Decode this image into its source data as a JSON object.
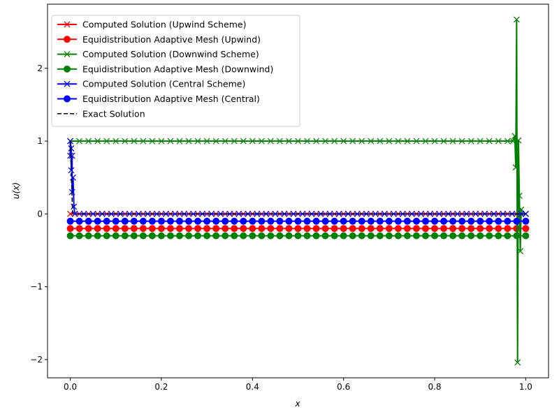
{
  "chart_data": {
    "type": "line",
    "title": "",
    "xlabel": "x",
    "ylabel": "u(x)",
    "xlim": [
      -0.05,
      1.05
    ],
    "ylim": [
      -2.25,
      2.88
    ],
    "xticks": [
      0.0,
      0.2,
      0.4,
      0.6,
      0.8,
      1.0
    ],
    "xtick_labels": [
      "0.0",
      "0.2",
      "0.4",
      "0.6",
      "0.8",
      "1.0"
    ],
    "yticks": [
      -2,
      -1,
      0,
      1,
      2
    ],
    "ytick_labels": [
      "−2",
      "−1",
      "0",
      "1",
      "2"
    ],
    "grid": false,
    "legend_position": "top-left",
    "series": [
      {
        "name": "Computed Solution (Upwind Scheme)",
        "color": "#ff0000",
        "marker": "x",
        "style": "solid",
        "x": [
          0.0,
          0.02,
          0.04,
          0.06,
          0.08,
          0.1,
          0.12,
          0.14,
          0.16,
          0.18,
          0.2,
          0.22,
          0.24,
          0.26,
          0.28,
          0.3,
          0.32,
          0.34,
          0.36,
          0.38,
          0.4,
          0.42,
          0.44,
          0.46,
          0.48,
          0.5,
          0.52,
          0.54,
          0.56,
          0.58,
          0.6,
          0.62,
          0.64,
          0.66,
          0.68,
          0.7,
          0.72,
          0.74,
          0.76,
          0.78,
          0.8,
          0.82,
          0.84,
          0.86,
          0.88,
          0.9,
          0.92,
          0.94,
          0.96,
          0.98,
          1.0
        ],
        "y": [
          0.0,
          0.0,
          0.0,
          0.0,
          0.0,
          0.0,
          0.0,
          0.0,
          0.0,
          0.0,
          0.0,
          0.0,
          0.0,
          0.0,
          0.0,
          0.0,
          0.0,
          0.0,
          0.0,
          0.0,
          0.0,
          0.0,
          0.0,
          0.0,
          0.0,
          0.0,
          0.0,
          0.0,
          0.0,
          0.0,
          0.0,
          0.0,
          0.0,
          0.0,
          0.0,
          0.0,
          0.0,
          0.0,
          0.0,
          0.0,
          0.0,
          0.0,
          0.0,
          0.0,
          0.0,
          0.0,
          0.0,
          0.0,
          0.0,
          0.0,
          0.0
        ]
      },
      {
        "name": "Equidistribution Adaptive Mesh (Upwind)",
        "color": "#ff0000",
        "marker": "o",
        "style": "solid",
        "x": [
          0.0,
          0.02,
          0.04,
          0.06,
          0.08,
          0.1,
          0.12,
          0.14,
          0.16,
          0.18,
          0.2,
          0.22,
          0.24,
          0.26,
          0.28,
          0.3,
          0.32,
          0.34,
          0.36,
          0.38,
          0.4,
          0.42,
          0.44,
          0.46,
          0.48,
          0.5,
          0.52,
          0.54,
          0.56,
          0.58,
          0.6,
          0.62,
          0.64,
          0.66,
          0.68,
          0.7,
          0.72,
          0.74,
          0.76,
          0.78,
          0.8,
          0.82,
          0.84,
          0.86,
          0.88,
          0.9,
          0.92,
          0.94,
          0.96,
          0.98,
          1.0
        ],
        "y": [
          -0.2,
          -0.2,
          -0.2,
          -0.2,
          -0.2,
          -0.2,
          -0.2,
          -0.2,
          -0.2,
          -0.2,
          -0.2,
          -0.2,
          -0.2,
          -0.2,
          -0.2,
          -0.2,
          -0.2,
          -0.2,
          -0.2,
          -0.2,
          -0.2,
          -0.2,
          -0.2,
          -0.2,
          -0.2,
          -0.2,
          -0.2,
          -0.2,
          -0.2,
          -0.2,
          -0.2,
          -0.2,
          -0.2,
          -0.2,
          -0.2,
          -0.2,
          -0.2,
          -0.2,
          -0.2,
          -0.2,
          -0.2,
          -0.2,
          -0.2,
          -0.2,
          -0.2,
          -0.2,
          -0.2,
          -0.2,
          -0.2,
          -0.2,
          -0.2
        ]
      },
      {
        "name": "Computed Solution (Downwind Scheme)",
        "color": "#008000",
        "marker": "x",
        "style": "solid",
        "x": [
          0.0,
          0.02,
          0.04,
          0.06,
          0.08,
          0.1,
          0.12,
          0.14,
          0.16,
          0.18,
          0.2,
          0.22,
          0.24,
          0.26,
          0.28,
          0.3,
          0.32,
          0.34,
          0.36,
          0.38,
          0.4,
          0.42,
          0.44,
          0.46,
          0.48,
          0.5,
          0.52,
          0.54,
          0.56,
          0.58,
          0.6,
          0.62,
          0.64,
          0.66,
          0.68,
          0.7,
          0.72,
          0.74,
          0.76,
          0.78,
          0.8,
          0.82,
          0.84,
          0.86,
          0.88,
          0.9,
          0.92,
          0.94,
          0.96,
          0.972,
          0.976,
          0.978,
          0.98,
          0.982,
          0.984,
          0.986,
          0.988,
          0.99,
          1.0
        ],
        "y": [
          1.0,
          1.0,
          1.0,
          1.0,
          1.0,
          1.0,
          1.0,
          1.0,
          1.0,
          1.0,
          1.0,
          1.0,
          1.0,
          1.0,
          1.0,
          1.0,
          1.0,
          1.0,
          1.0,
          1.0,
          1.0,
          1.0,
          1.0,
          1.0,
          1.0,
          1.0,
          1.0,
          1.0,
          1.0,
          1.0,
          1.0,
          1.0,
          1.0,
          1.0,
          1.0,
          1.0,
          1.0,
          1.0,
          1.0,
          1.0,
          1.0,
          1.0,
          1.0,
          1.0,
          1.0,
          1.0,
          1.0,
          1.0,
          1.0,
          1.0,
          1.07,
          0.64,
          2.67,
          -2.04,
          1.01,
          0.25,
          -0.51,
          0.06,
          0.0
        ]
      },
      {
        "name": "Equidistribution Adaptive Mesh (Downwind)",
        "color": "#008000",
        "marker": "o",
        "style": "solid",
        "x": [
          0.0,
          0.02,
          0.04,
          0.06,
          0.08,
          0.1,
          0.12,
          0.14,
          0.16,
          0.18,
          0.2,
          0.22,
          0.24,
          0.26,
          0.28,
          0.3,
          0.32,
          0.34,
          0.36,
          0.38,
          0.4,
          0.42,
          0.44,
          0.46,
          0.48,
          0.5,
          0.52,
          0.54,
          0.56,
          0.58,
          0.6,
          0.62,
          0.64,
          0.66,
          0.68,
          0.7,
          0.72,
          0.74,
          0.76,
          0.78,
          0.8,
          0.82,
          0.84,
          0.86,
          0.88,
          0.9,
          0.92,
          0.94,
          0.96,
          0.98,
          1.0
        ],
        "y": [
          -0.3,
          -0.3,
          -0.3,
          -0.3,
          -0.3,
          -0.3,
          -0.3,
          -0.3,
          -0.3,
          -0.3,
          -0.3,
          -0.3,
          -0.3,
          -0.3,
          -0.3,
          -0.3,
          -0.3,
          -0.3,
          -0.3,
          -0.3,
          -0.3,
          -0.3,
          -0.3,
          -0.3,
          -0.3,
          -0.3,
          -0.3,
          -0.3,
          -0.3,
          -0.3,
          -0.3,
          -0.3,
          -0.3,
          -0.3,
          -0.3,
          -0.3,
          -0.3,
          -0.3,
          -0.3,
          -0.3,
          -0.3,
          -0.3,
          -0.3,
          -0.3,
          -0.3,
          -0.3,
          -0.3,
          -0.3,
          -0.3,
          -0.3,
          -0.3
        ]
      },
      {
        "name": "Computed Solution (Central Scheme)",
        "color": "#0000ff",
        "marker": "x",
        "style": "solid",
        "x": [
          0.0,
          0.0,
          0.002,
          0.002,
          0.004,
          0.004,
          0.006,
          0.008,
          0.01,
          0.03,
          0.05,
          0.07,
          0.09,
          0.11,
          0.13,
          0.15,
          0.17,
          0.19,
          0.21,
          0.23,
          0.25,
          0.27,
          0.29,
          0.31,
          0.33,
          0.35,
          0.37,
          0.39,
          0.41,
          0.43,
          0.45,
          0.47,
          0.49,
          0.51,
          0.53,
          0.55,
          0.57,
          0.59,
          0.61,
          0.63,
          0.65,
          0.67,
          0.69,
          0.71,
          0.73,
          0.75,
          0.77,
          0.79,
          0.81,
          0.83,
          0.85,
          0.87,
          0.89,
          0.91,
          0.93,
          0.95,
          0.97,
          0.99,
          1.0
        ],
        "y": [
          0.8,
          1.0,
          0.9,
          0.6,
          0.8,
          0.3,
          0.5,
          0.1,
          0.0,
          0.0,
          0.0,
          0.0,
          0.0,
          0.0,
          0.0,
          0.0,
          0.0,
          0.0,
          0.0,
          0.0,
          0.0,
          0.0,
          0.0,
          0.0,
          0.0,
          0.0,
          0.0,
          0.0,
          0.0,
          0.0,
          0.0,
          0.0,
          0.0,
          0.0,
          0.0,
          0.0,
          0.0,
          0.0,
          0.0,
          0.0,
          0.0,
          0.0,
          0.0,
          0.0,
          0.0,
          0.0,
          0.0,
          0.0,
          0.0,
          0.0,
          0.0,
          0.0,
          0.0,
          0.0,
          0.0,
          0.0,
          0.0,
          0.0,
          0.0
        ]
      },
      {
        "name": "Equidistribution Adaptive Mesh (Central)",
        "color": "#0000ff",
        "marker": "o",
        "style": "solid",
        "x": [
          0.0,
          0.02,
          0.04,
          0.06,
          0.08,
          0.1,
          0.12,
          0.14,
          0.16,
          0.18,
          0.2,
          0.22,
          0.24,
          0.26,
          0.28,
          0.3,
          0.32,
          0.34,
          0.36,
          0.38,
          0.4,
          0.42,
          0.44,
          0.46,
          0.48,
          0.5,
          0.52,
          0.54,
          0.56,
          0.58,
          0.6,
          0.62,
          0.64,
          0.66,
          0.68,
          0.7,
          0.72,
          0.74,
          0.76,
          0.78,
          0.8,
          0.82,
          0.84,
          0.86,
          0.88,
          0.9,
          0.92,
          0.94,
          0.96,
          0.98,
          1.0
        ],
        "y": [
          -0.1,
          -0.1,
          -0.1,
          -0.1,
          -0.1,
          -0.1,
          -0.1,
          -0.1,
          -0.1,
          -0.1,
          -0.1,
          -0.1,
          -0.1,
          -0.1,
          -0.1,
          -0.1,
          -0.1,
          -0.1,
          -0.1,
          -0.1,
          -0.1,
          -0.1,
          -0.1,
          -0.1,
          -0.1,
          -0.1,
          -0.1,
          -0.1,
          -0.1,
          -0.1,
          -0.1,
          -0.1,
          -0.1,
          -0.1,
          -0.1,
          -0.1,
          -0.1,
          -0.1,
          -0.1,
          -0.1,
          -0.1,
          -0.1,
          -0.1,
          -0.1,
          -0.1,
          -0.1,
          -0.1,
          -0.1,
          -0.1,
          -0.1,
          -0.1
        ]
      },
      {
        "name": "Exact Solution",
        "color": "#000000",
        "marker": "none",
        "style": "dashed",
        "x": [
          0.0,
          0.005,
          0.01,
          1.0
        ],
        "y": [
          1.0,
          0.0,
          0.0,
          0.0
        ]
      }
    ]
  }
}
